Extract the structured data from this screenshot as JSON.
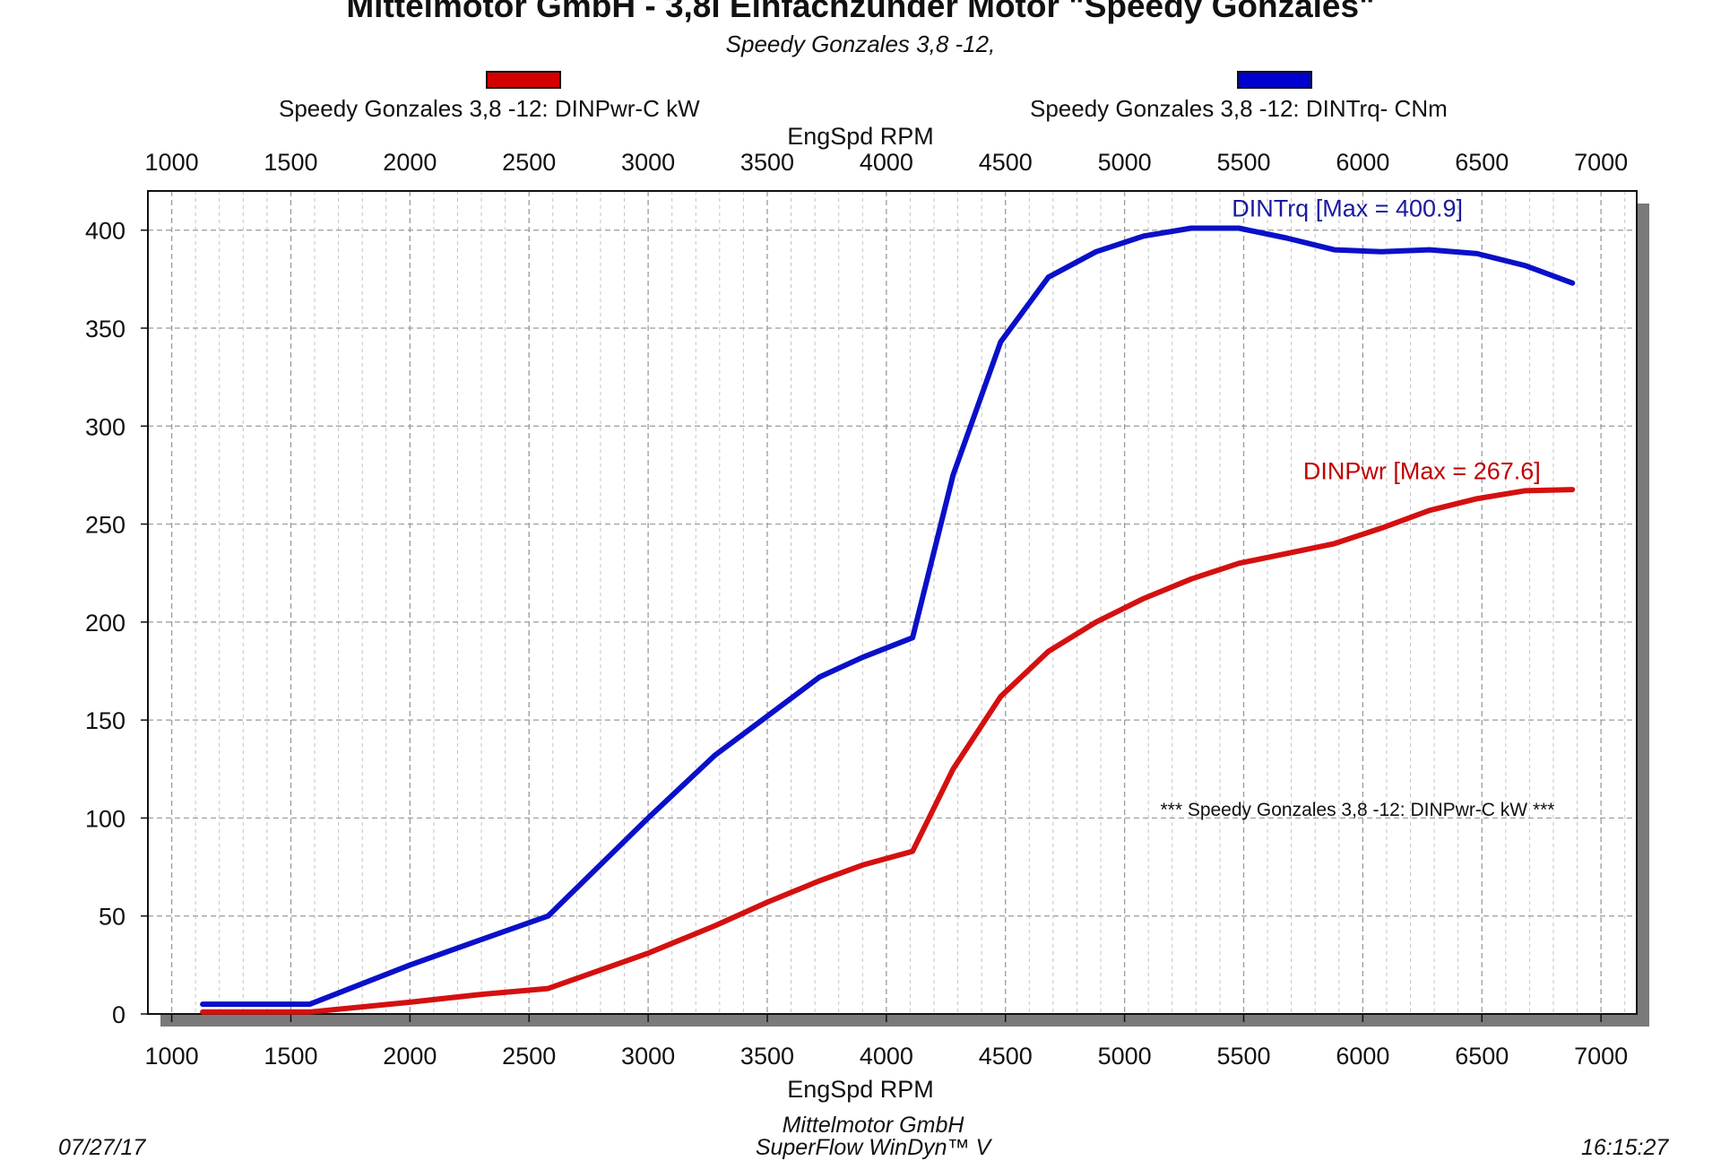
{
  "header": {
    "title": "Mittelmotor GmbH - 3,8l Einfachzünder Motor \"Speedy Gonzales\"",
    "subtitle": "Speedy Gonzales 3,8 -12,"
  },
  "legend": [
    {
      "label": "Speedy Gonzales 3,8 -12: DINPwr-C kW",
      "color": "#d40000"
    },
    {
      "label": "Speedy Gonzales 3,8 -12: DINTrq- CNm",
      "color": "#0000d0"
    }
  ],
  "footer": {
    "company": "Mittelmotor GmbH",
    "software": "SuperFlow WinDyn™ V",
    "date": "07/27/17",
    "time": "16:15:27"
  },
  "chart_data": {
    "type": "line",
    "title": "Mittelmotor GmbH - 3,8l Einfachzünder Motor \"Speedy Gonzales\"",
    "subtitle": "Speedy Gonzales 3,8 -12,",
    "xlabel": "EngSpd  RPM",
    "ylabel": "",
    "xlim": [
      900,
      7150
    ],
    "ylim": [
      0,
      420
    ],
    "xticks": [
      1000,
      1500,
      2000,
      2500,
      3000,
      3500,
      4000,
      4500,
      5000,
      5500,
      6000,
      6500,
      7000
    ],
    "yticks": [
      0,
      50,
      100,
      150,
      200,
      250,
      300,
      350,
      400
    ],
    "grid": true,
    "annotations": [
      {
        "text": "DINTrq [Max = 400.9]",
        "x": 5450,
        "y": 407,
        "color": "#1a1aa0"
      },
      {
        "text": "DINPwr [Max = 267.6]",
        "x": 5750,
        "y": 273,
        "color": "#c00000"
      },
      {
        "text": "*** Speedy Gonzales 3,8 -12: DINPwr-C kW   ***",
        "x": 5150,
        "y": 101,
        "color": "#111111"
      }
    ],
    "series": [
      {
        "name": "DINTrq",
        "color": "#0a10c8",
        "x": [
          1130,
          1580,
          2000,
          2300,
          2580,
          3000,
          3280,
          3500,
          3720,
          3900,
          4110,
          4280,
          4480,
          4680,
          4880,
          5080,
          5280,
          5480,
          5680,
          5880,
          6080,
          6280,
          6480,
          6680,
          6880
        ],
        "y": [
          5,
          5,
          25,
          38,
          50,
          100,
          132,
          152,
          172,
          182,
          192,
          275,
          343,
          376,
          389,
          397,
          401,
          401,
          396,
          390,
          389,
          390,
          388,
          382,
          373
        ]
      },
      {
        "name": "DINPwr",
        "color": "#d41010",
        "x": [
          1130,
          1580,
          2000,
          2300,
          2580,
          3000,
          3280,
          3500,
          3720,
          3900,
          4110,
          4280,
          4480,
          4680,
          4880,
          5080,
          5280,
          5480,
          5680,
          5880,
          6080,
          6280,
          6480,
          6680,
          6880
        ],
        "y": [
          1,
          1,
          6,
          10,
          13,
          31,
          45,
          57,
          68,
          76,
          83,
          125,
          162,
          185,
          200,
          212,
          222,
          230,
          235,
          240,
          248,
          257,
          263,
          267,
          267.6
        ]
      }
    ]
  }
}
